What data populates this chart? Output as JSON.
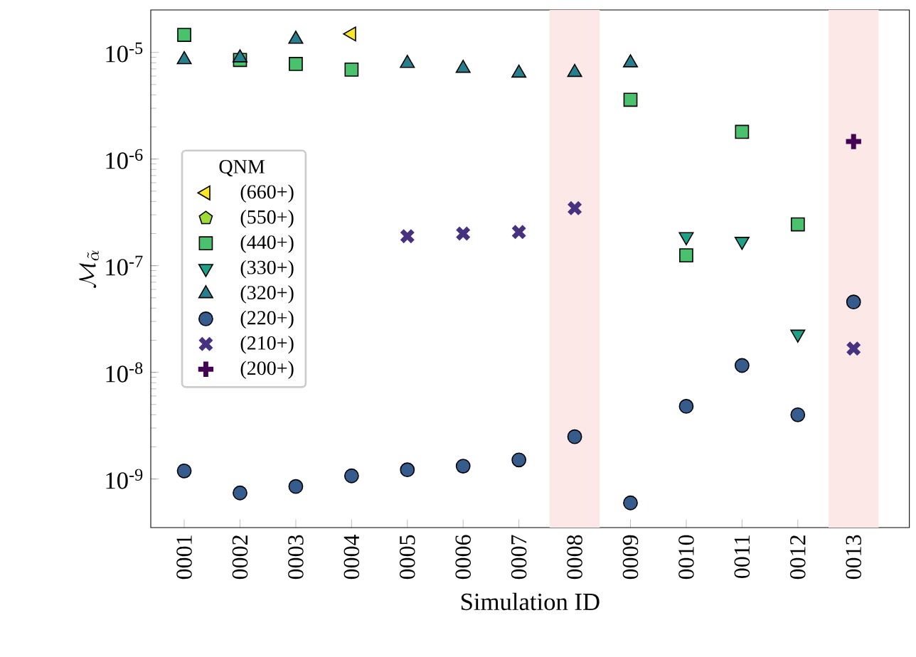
{
  "chart_data": {
    "type": "scatter",
    "xlabel": "Simulation ID",
    "ylabel": "\\mathcal{M}_{\\tilde{\\alpha}}",
    "legend_title": "QNM",
    "legend": "left",
    "log": "y",
    "categories": [
      "0001",
      "0002",
      "0003",
      "0004",
      "0005",
      "0006",
      "0007",
      "0008",
      "0009",
      "0010",
      "0011",
      "0012",
      "0013"
    ],
    "ylim": [
      3.5e-10,
      2.5e-05
    ],
    "yticks": [
      {
        "value": 1e-09,
        "label": "10$^{-9}$"
      },
      {
        "value": 1e-08,
        "label": "10$^{-8}$"
      },
      {
        "value": 1e-07,
        "label": "10$^{-7}$"
      },
      {
        "value": 1e-06,
        "label": "10$^{-6}$"
      },
      {
        "value": 1e-05,
        "label": "10$^{-5}$"
      }
    ],
    "bands": [
      {
        "axis": "x",
        "from": "0008",
        "to": "0008",
        "color": "#fde8e8"
      },
      {
        "axis": "x",
        "from": "0013",
        "to": "0013",
        "color": "#fde8e8"
      }
    ],
    "series": [
      {
        "name": "(660+)",
        "color": "#fde725",
        "marker": "triangle_left",
        "values": [
          null,
          null,
          null,
          1.49e-05,
          null,
          null,
          null,
          null,
          null,
          null,
          null,
          null,
          null
        ]
      },
      {
        "name": "(550+)",
        "color": "#a0da39",
        "marker": "pentagon",
        "values": [
          null,
          null,
          null,
          null,
          null,
          null,
          null,
          null,
          null,
          null,
          null,
          null,
          null
        ]
      },
      {
        "name": "(440+)",
        "color": "#4ac16d",
        "marker": "square",
        "values": [
          1.46e-05,
          8.5e-06,
          7.8e-06,
          6.9e-06,
          null,
          null,
          null,
          null,
          3.6e-06,
          1.25e-07,
          1.8e-06,
          2.44e-07,
          null
        ]
      },
      {
        "name": "(330+)",
        "color": "#1fa187",
        "marker": "triangle_down",
        "values": [
          null,
          null,
          null,
          null,
          null,
          null,
          null,
          null,
          null,
          1.87e-07,
          1.69e-07,
          2.28e-08,
          null
        ]
      },
      {
        "name": "(320+)",
        "color": "#277f8e",
        "marker": "triangle",
        "values": [
          8.55e-06,
          8.9e-06,
          1.33e-05,
          null,
          7.9e-06,
          7.1e-06,
          6.4e-06,
          6.5e-06,
          8e-06,
          null,
          null,
          null,
          null
        ]
      },
      {
        "name": "(220+)",
        "color": "#365c8d",
        "marker": "circle",
        "values": [
          1.19e-09,
          7.4e-10,
          8.5e-10,
          1.07e-09,
          1.22e-09,
          1.32e-09,
          1.51e-09,
          2.49e-09,
          5.97e-10,
          4.8e-09,
          1.16e-08,
          4e-09,
          4.57e-08
        ]
      },
      {
        "name": "(210+)",
        "color": "#46327e",
        "marker": "x",
        "values": [
          null,
          null,
          null,
          null,
          1.89e-07,
          2e-07,
          2.07e-07,
          3.46e-07,
          null,
          null,
          null,
          null,
          1.67e-08
        ]
      },
      {
        "name": "(200+)",
        "color": "#440154",
        "marker": "plus",
        "values": [
          null,
          null,
          null,
          null,
          null,
          null,
          null,
          null,
          null,
          null,
          null,
          null,
          1.46e-06
        ]
      }
    ]
  }
}
